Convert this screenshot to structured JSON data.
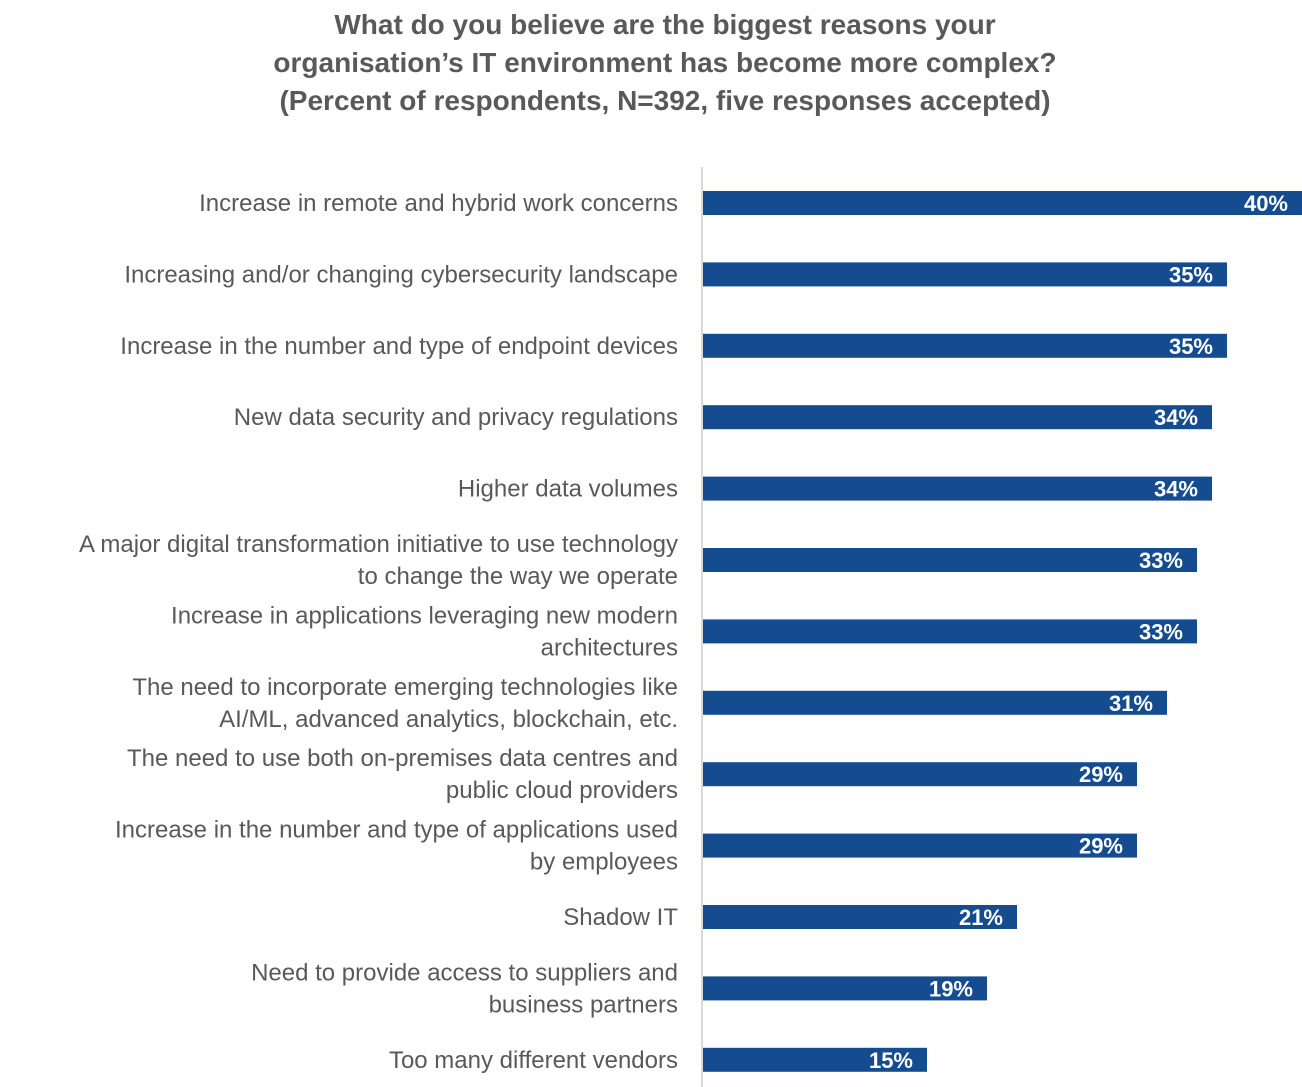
{
  "chart_data": {
    "type": "bar",
    "orientation": "horizontal",
    "title_lines": [
      "What do you believe are the biggest reasons your",
      "organisation’s IT environment has become more complex?",
      "(Percent of respondents, N=392, five responses accepted)"
    ],
    "categories": [
      [
        "Increase in remote and hybrid work concerns"
      ],
      [
        "Increasing and/or changing cybersecurity landscape"
      ],
      [
        "Increase in the number and type of endpoint devices"
      ],
      [
        "New data security and privacy regulations"
      ],
      [
        "Higher data volumes"
      ],
      [
        "A major digital transformation initiative to use technology",
        "to change the way we operate"
      ],
      [
        "Increase in applications leveraging new modern",
        "architectures"
      ],
      [
        "The need to incorporate emerging technologies like",
        "AI/ML, advanced analytics, blockchain, etc."
      ],
      [
        "The need to use both on-premises data centres and",
        "public cloud providers"
      ],
      [
        "Increase in the number and type of applications used",
        "by employees"
      ],
      [
        "Shadow IT"
      ],
      [
        "Need to provide access to suppliers and",
        "business partners"
      ],
      [
        "Too many different vendors"
      ]
    ],
    "values": [
      40,
      35,
      35,
      34,
      34,
      33,
      33,
      31,
      29,
      29,
      21,
      19,
      15
    ],
    "value_labels": [
      "40%",
      "35%",
      "35%",
      "34%",
      "34%",
      "33%",
      "33%",
      "31%",
      "29%",
      "29%",
      "21%",
      "19%",
      "15%"
    ],
    "value_unit": "%",
    "xlim": [
      0,
      40
    ],
    "grid": false,
    "legend": "none",
    "bar_color": "#154C90",
    "axis_color": "#D9D9D9",
    "label_color": "#595959",
    "title_color": "#595959",
    "value_label_color": "#FFFFFF"
  }
}
